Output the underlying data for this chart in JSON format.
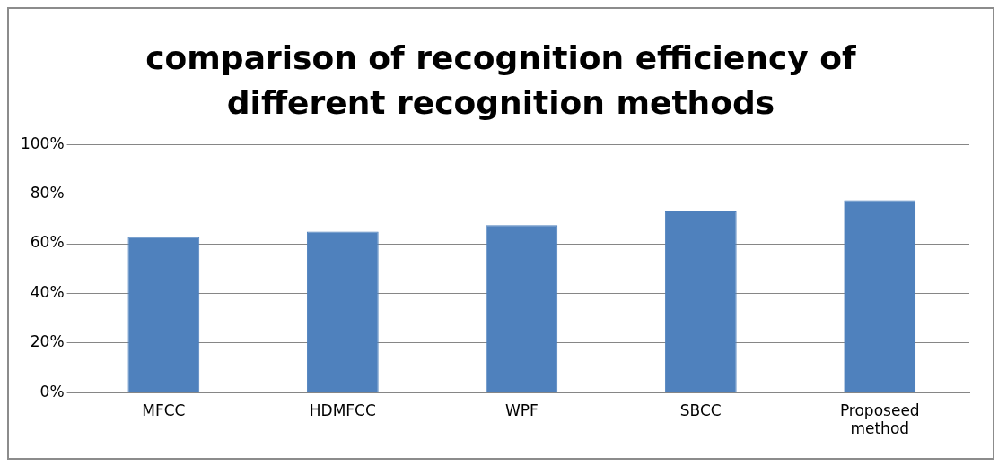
{
  "chart_data": {
    "type": "bar",
    "title": "comparison of recognition efficiency of different recognition methods",
    "categories": [
      "MFCC",
      "HDMFCC",
      "WPF",
      "SBCC",
      "Proposeed method"
    ],
    "values": [
      62.7,
      64.9,
      67.5,
      73,
      77.5
    ],
    "color": "#4f81bd",
    "ylim": [
      0,
      100
    ],
    "yticks": [
      {
        "value": 0,
        "label": "0%"
      },
      {
        "value": 20,
        "label": "20%"
      },
      {
        "value": 40,
        "label": "40%"
      },
      {
        "value": 60,
        "label": "60%"
      },
      {
        "value": 80,
        "label": "80%"
      },
      {
        "value": 100,
        "label": "100%"
      }
    ],
    "grid": "y",
    "legend": false
  }
}
